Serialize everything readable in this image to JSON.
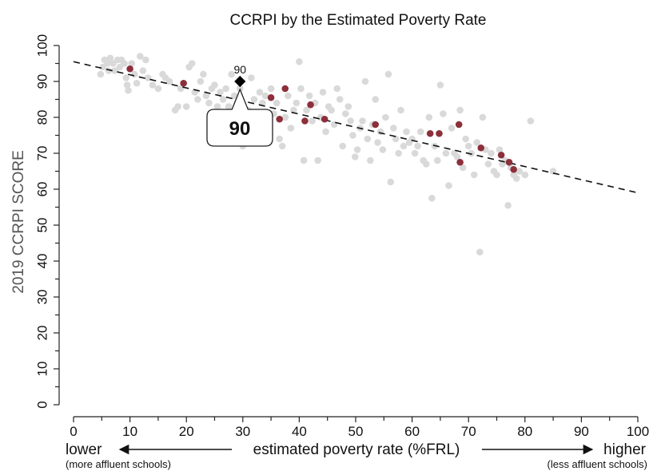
{
  "chart_data": {
    "type": "scatter",
    "title": "CCRPI by the Estimated Poverty Rate",
    "xlabel": "estimated poverty rate (%FRL)",
    "ylabel": "2019 CCRPI SCORE",
    "xlim": [
      0,
      100
    ],
    "ylim": [
      0,
      100
    ],
    "x_ticks": [
      "0",
      "10",
      "20",
      "30",
      "40",
      "50",
      "60",
      "70",
      "80",
      "90",
      "100"
    ],
    "y_ticks": [
      "0",
      "10",
      "20",
      "30",
      "40",
      "50",
      "60",
      "70",
      "80",
      "90",
      "100"
    ],
    "grid": false,
    "trendline": {
      "x": [
        0,
        100
      ],
      "y": [
        95.5,
        59
      ]
    },
    "highlighted_school": {
      "x": 29.5,
      "y": 90,
      "label": "90",
      "callout": "90"
    },
    "series": [
      {
        "values": [
          [
            4.8,
            92
          ],
          [
            5.2,
            94
          ],
          [
            5.5,
            96
          ],
          [
            6,
            95
          ],
          [
            6.2,
            93
          ],
          [
            6.5,
            96.5
          ],
          [
            7,
            95
          ],
          [
            7.3,
            93
          ],
          [
            7.8,
            96
          ],
          [
            8.2,
            94
          ],
          [
            8.5,
            96
          ],
          [
            9,
            95
          ],
          [
            9.3,
            91
          ],
          [
            9.5,
            89
          ],
          [
            9.7,
            87.5
          ],
          [
            10.3,
            95
          ],
          [
            10.8,
            92
          ],
          [
            11.2,
            89.5
          ],
          [
            11.8,
            97
          ],
          [
            12.3,
            93
          ],
          [
            12.8,
            96
          ],
          [
            13.2,
            91
          ],
          [
            14,
            89
          ],
          [
            15,
            88
          ],
          [
            15.8,
            92
          ],
          [
            16.3,
            91
          ],
          [
            17,
            90
          ],
          [
            18,
            82
          ],
          [
            18.5,
            83
          ],
          [
            19,
            88
          ],
          [
            20,
            83
          ],
          [
            20.5,
            94
          ],
          [
            21,
            95
          ],
          [
            21.5,
            87
          ],
          [
            22,
            85
          ],
          [
            22.5,
            90
          ],
          [
            23,
            92
          ],
          [
            23.5,
            86
          ],
          [
            24,
            84
          ],
          [
            24.5,
            88
          ],
          [
            25,
            89
          ],
          [
            25.5,
            83
          ],
          [
            26,
            87
          ],
          [
            26.5,
            85
          ],
          [
            27,
            88
          ],
          [
            27.5,
            83
          ],
          [
            28,
            92
          ],
          [
            28.5,
            86
          ],
          [
            29,
            84
          ],
          [
            29.5,
            88
          ],
          [
            30,
            72
          ],
          [
            30.5,
            77
          ],
          [
            31,
            82
          ],
          [
            31.5,
            91
          ],
          [
            32,
            85
          ],
          [
            32.5,
            80
          ],
          [
            33,
            87
          ],
          [
            33.5,
            84
          ],
          [
            34,
            86
          ],
          [
            34.5,
            78
          ],
          [
            35,
            88
          ],
          [
            35.5,
            81
          ],
          [
            36,
            84
          ],
          [
            36.5,
            74
          ],
          [
            37,
            72
          ],
          [
            37.5,
            80
          ],
          [
            38,
            86
          ],
          [
            38.5,
            77
          ],
          [
            39,
            82
          ],
          [
            39.5,
            84
          ],
          [
            40,
            95.5
          ],
          [
            40.3,
            88
          ],
          [
            40.8,
            68
          ],
          [
            41.3,
            82
          ],
          [
            41.8,
            86
          ],
          [
            42.3,
            79
          ],
          [
            42.8,
            84
          ],
          [
            43.3,
            68
          ],
          [
            43.8,
            80
          ],
          [
            44.2,
            87
          ],
          [
            44.7,
            76
          ],
          [
            45.2,
            83
          ],
          [
            45.7,
            82
          ],
          [
            46.2,
            78
          ],
          [
            46.7,
            88
          ],
          [
            47.2,
            85
          ],
          [
            47.7,
            72
          ],
          [
            48.2,
            81
          ],
          [
            48.7,
            83
          ],
          [
            49.1,
            79
          ],
          [
            49.5,
            75
          ],
          [
            49.9,
            69
          ],
          [
            50.3,
            71
          ],
          [
            50.8,
            77
          ],
          [
            51.2,
            79
          ],
          [
            51.7,
            90
          ],
          [
            52.1,
            74
          ],
          [
            52.6,
            68
          ],
          [
            53,
            78
          ],
          [
            53.5,
            85
          ],
          [
            53.9,
            73
          ],
          [
            54.4,
            76
          ],
          [
            54.8,
            71
          ],
          [
            55.3,
            80
          ],
          [
            55.8,
            92
          ],
          [
            56.2,
            62
          ],
          [
            56.7,
            77
          ],
          [
            57.1,
            74
          ],
          [
            57.6,
            70
          ],
          [
            58,
            82
          ],
          [
            58.5,
            72
          ],
          [
            59,
            76
          ],
          [
            59.5,
            73
          ],
          [
            60,
            74
          ],
          [
            60.5,
            70
          ],
          [
            61,
            72
          ],
          [
            61.5,
            76
          ],
          [
            62,
            68
          ],
          [
            62.5,
            67
          ],
          [
            63,
            80
          ],
          [
            63.5,
            57.5
          ],
          [
            64,
            72
          ],
          [
            64.5,
            68
          ],
          [
            65,
            89
          ],
          [
            65.5,
            81
          ],
          [
            66,
            70
          ],
          [
            66.5,
            61
          ],
          [
            67,
            77
          ],
          [
            67.5,
            70
          ],
          [
            68,
            69
          ],
          [
            68.5,
            82
          ],
          [
            69,
            66
          ],
          [
            69.5,
            74
          ],
          [
            70,
            72
          ],
          [
            70.5,
            70
          ],
          [
            71,
            64
          ],
          [
            71.5,
            73
          ],
          [
            72,
            42.5
          ],
          [
            72.5,
            80
          ],
          [
            73,
            71
          ],
          [
            73.5,
            67
          ],
          [
            74,
            70
          ],
          [
            74.5,
            65
          ],
          [
            75,
            64
          ],
          [
            75.5,
            71
          ],
          [
            76,
            67
          ],
          [
            76.5,
            68
          ],
          [
            77,
            55.5
          ],
          [
            77.5,
            66
          ],
          [
            78,
            64
          ],
          [
            78.5,
            63
          ],
          [
            79,
            65
          ],
          [
            80,
            64
          ],
          [
            81,
            79
          ],
          [
            85,
            65
          ]
        ]
      },
      {
        "values": [
          [
            10,
            93.5
          ],
          [
            19.5,
            89.5
          ],
          [
            35,
            85.5
          ],
          [
            36.5,
            79.5
          ],
          [
            37.5,
            88
          ],
          [
            41,
            79
          ],
          [
            42,
            83.5
          ],
          [
            44.5,
            79.5
          ],
          [
            53.5,
            78
          ],
          [
            63.2,
            75.5
          ],
          [
            64.8,
            75.5
          ],
          [
            68.3,
            78
          ],
          [
            68.5,
            67.5
          ],
          [
            72.2,
            71.5
          ],
          [
            75.8,
            69.5
          ],
          [
            77.2,
            67.5
          ],
          [
            78,
            65.5
          ]
        ]
      }
    ]
  },
  "annotations": {
    "lower": "lower",
    "higher": "higher",
    "lower_note": "(more affluent schools)",
    "higher_note": "(less affluent schools)"
  }
}
